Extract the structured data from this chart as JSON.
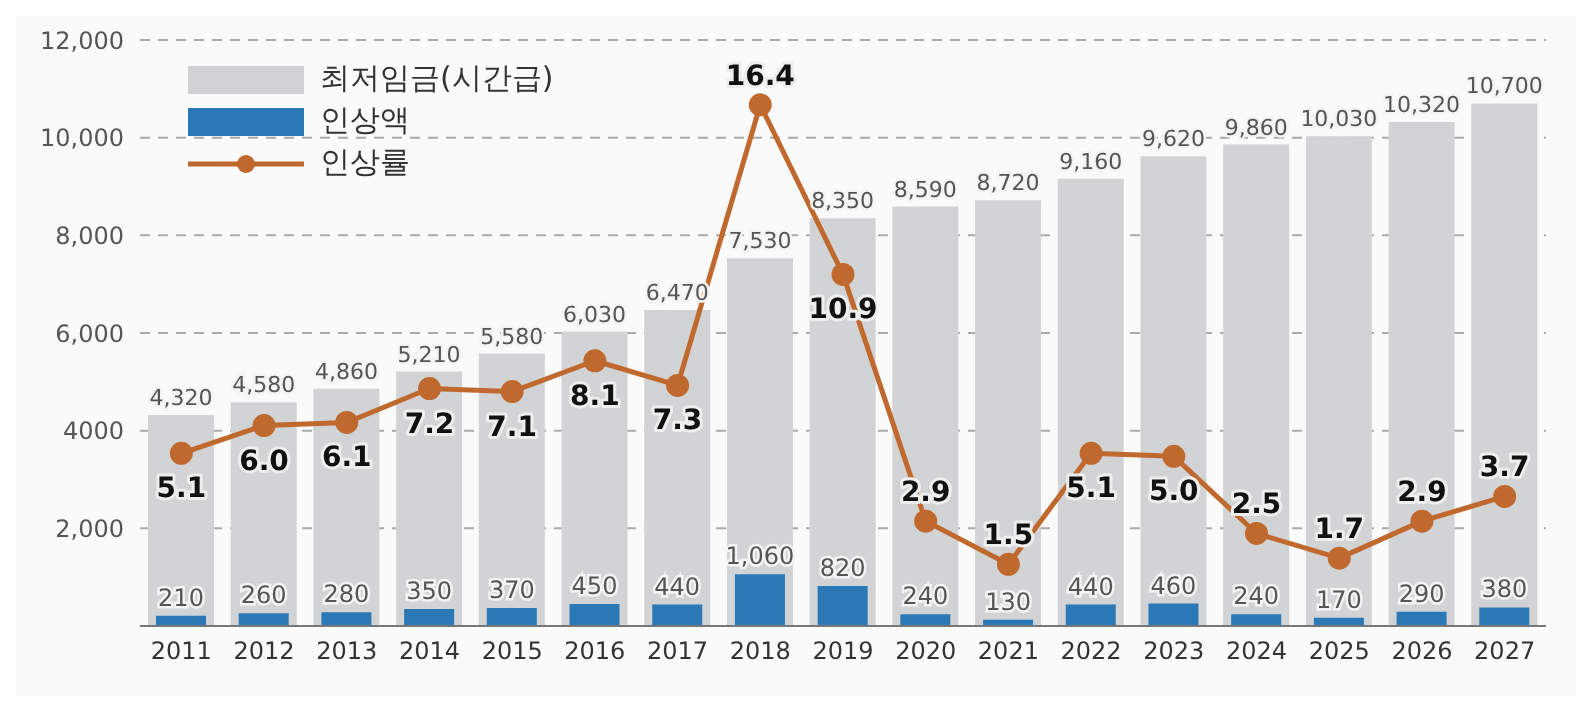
{
  "chart_data": {
    "type": "bar",
    "categories": [
      "2011",
      "2012",
      "2013",
      "2014",
      "2015",
      "2016",
      "2017",
      "2018",
      "2019",
      "2020",
      "2021",
      "2022",
      "2023",
      "2024",
      "2025",
      "2026",
      "2027"
    ],
    "series": [
      {
        "name": "최저임금(시간급)",
        "color": "#d2d3d5",
        "values": [
          4320,
          4580,
          4860,
          5210,
          5580,
          6030,
          6470,
          7530,
          8350,
          8590,
          8720,
          9160,
          9620,
          9860,
          10030,
          10320,
          10700
        ],
        "value_labels": [
          "4,320",
          "4,580",
          "4,860",
          "5,210",
          "5,580",
          "6,030",
          "6,470",
          "7,530",
          "8,350",
          "8,590",
          "8,720",
          "9,160",
          "9,620",
          "9,860",
          "10,030",
          "10,320",
          "10,700"
        ]
      },
      {
        "name": "인상액",
        "color": "#2a78b5",
        "values": [
          210,
          260,
          280,
          350,
          370,
          450,
          440,
          1060,
          820,
          240,
          130,
          440,
          460,
          240,
          170,
          290,
          380
        ],
        "value_labels": [
          "210",
          "260",
          "280",
          "350",
          "370",
          "450",
          "440",
          "1,060",
          "820",
          "240",
          "130",
          "440",
          "460",
          "240",
          "170",
          "290",
          "380"
        ]
      },
      {
        "name": "인상률",
        "type": "line",
        "axis": "y2",
        "color": "#c0692e",
        "marker": "circle",
        "values": [
          5.1,
          6.0,
          6.1,
          7.2,
          7.1,
          8.1,
          7.3,
          16.4,
          10.9,
          2.9,
          1.5,
          5.1,
          5.0,
          2.5,
          1.7,
          2.9,
          3.7
        ],
        "value_labels": [
          "5.1",
          "6.0",
          "6.1",
          "7.2",
          "7.1",
          "8.1",
          "7.3",
          "16.4",
          "10.9",
          "2.9",
          "1.5",
          "5.1",
          "5.0",
          "2.5",
          "1.7",
          "2.9",
          "3.7"
        ]
      }
    ],
    "ylim": [
      0,
      12000
    ],
    "yticks": [
      {
        "value": 2000,
        "label": "2,000"
      },
      {
        "value": 4000,
        "label": "4000"
      },
      {
        "value": 6000,
        "label": "6,000"
      },
      {
        "value": 8000,
        "label": "8,000"
      },
      {
        "value": 10000,
        "label": "10,000"
      },
      {
        "value": 12000,
        "label": "12,000"
      }
    ],
    "y2lim": [
      -0.5,
      18.5
    ],
    "grid": "y",
    "legend": "top left"
  }
}
